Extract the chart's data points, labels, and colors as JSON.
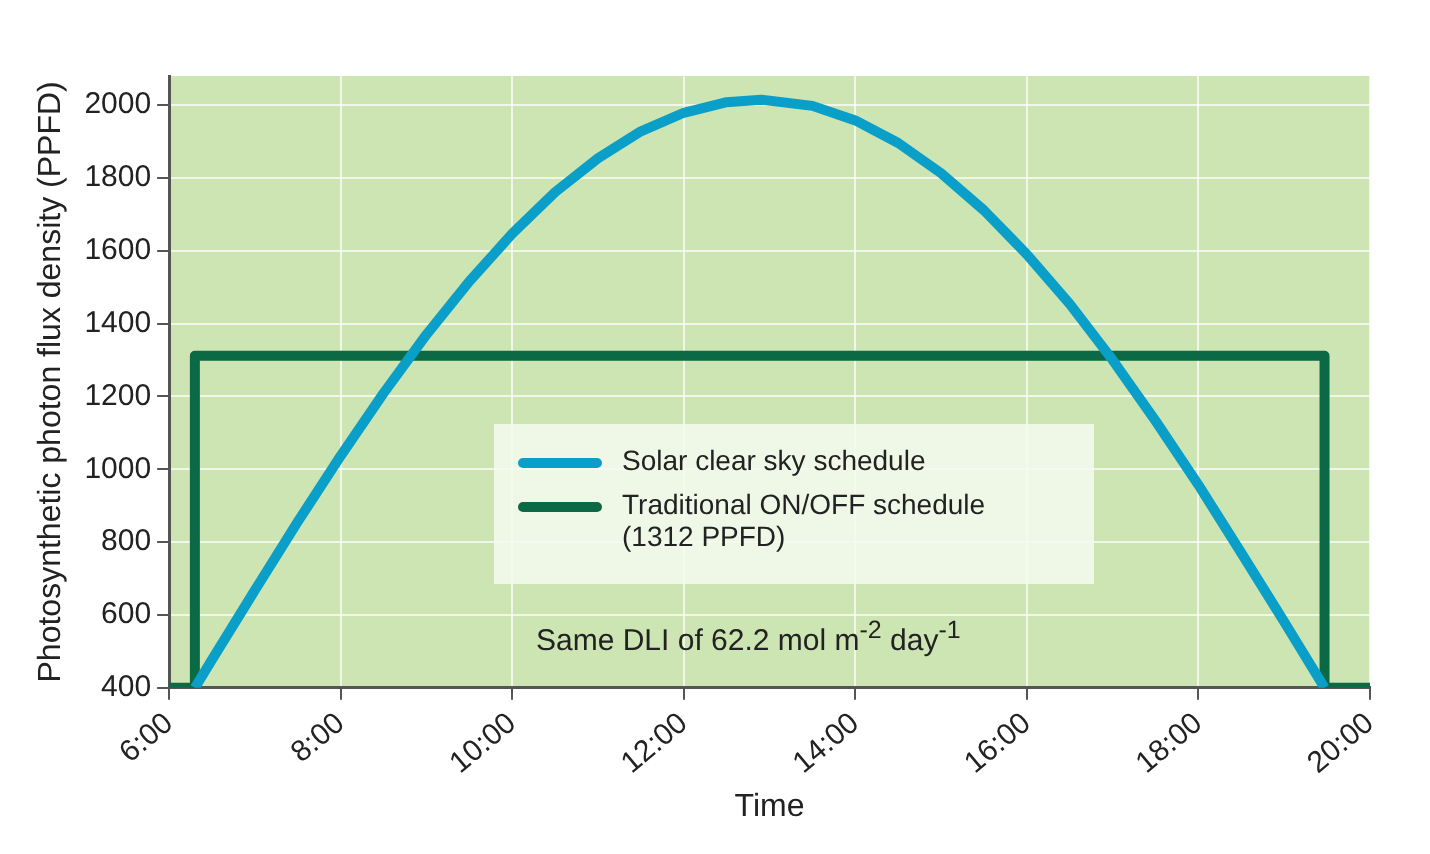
{
  "chart_data": {
    "type": "line",
    "xlabel": "Time",
    "ylabel": "Photosynthetic photon flux density (PPFD)",
    "series": [
      {
        "name": "Solar clear sky schedule",
        "color": "#0a9fc9",
        "x": [
          6.3,
          6.5,
          7,
          7.5,
          8,
          8.5,
          9,
          9.5,
          10,
          10.5,
          11,
          11.5,
          12,
          12.5,
          12.9,
          13.5,
          14,
          14.5,
          15,
          15.5,
          16,
          16.5,
          17,
          17.5,
          18,
          18.5,
          19,
          19.47
        ],
        "values": [
          400,
          477,
          668,
          856,
          1037,
          1209,
          1370,
          1516,
          1647,
          1761,
          1854,
          1928,
          1979,
          2008,
          2015,
          1998,
          1958,
          1896,
          1813,
          1711,
          1590,
          1454,
          1300,
          1133,
          957,
          770,
          581,
          400
        ]
      },
      {
        "name": "Traditional ON/OFF schedule (1312 PPFD)",
        "color": "#0b6a45",
        "x": [
          6,
          6.3,
          6.3,
          19.47,
          19.47,
          20
        ],
        "values": [
          400,
          400,
          1312,
          1312,
          400,
          400
        ]
      }
    ],
    "xlim": [
      6,
      20
    ],
    "xticks": [
      {
        "value": 6,
        "label": "6:00"
      },
      {
        "value": 8,
        "label": "8:00"
      },
      {
        "value": 10,
        "label": "10:00"
      },
      {
        "value": 12,
        "label": "12:00"
      },
      {
        "value": 14,
        "label": "14:00"
      },
      {
        "value": 16,
        "label": "16:00"
      },
      {
        "value": 18,
        "label": "18:00"
      },
      {
        "value": 20,
        "label": "20:00"
      }
    ],
    "ylim": [
      400,
      2080
    ],
    "yticks": [
      400,
      600,
      800,
      1000,
      1200,
      1400,
      1600,
      1800,
      2000
    ],
    "grid": true,
    "legend": "center",
    "marker": "none",
    "line_style": "solid",
    "annotations": [
      "Same DLI of 62.2 mol m$^{-2}$ day$^{-1}$"
    ]
  }
}
